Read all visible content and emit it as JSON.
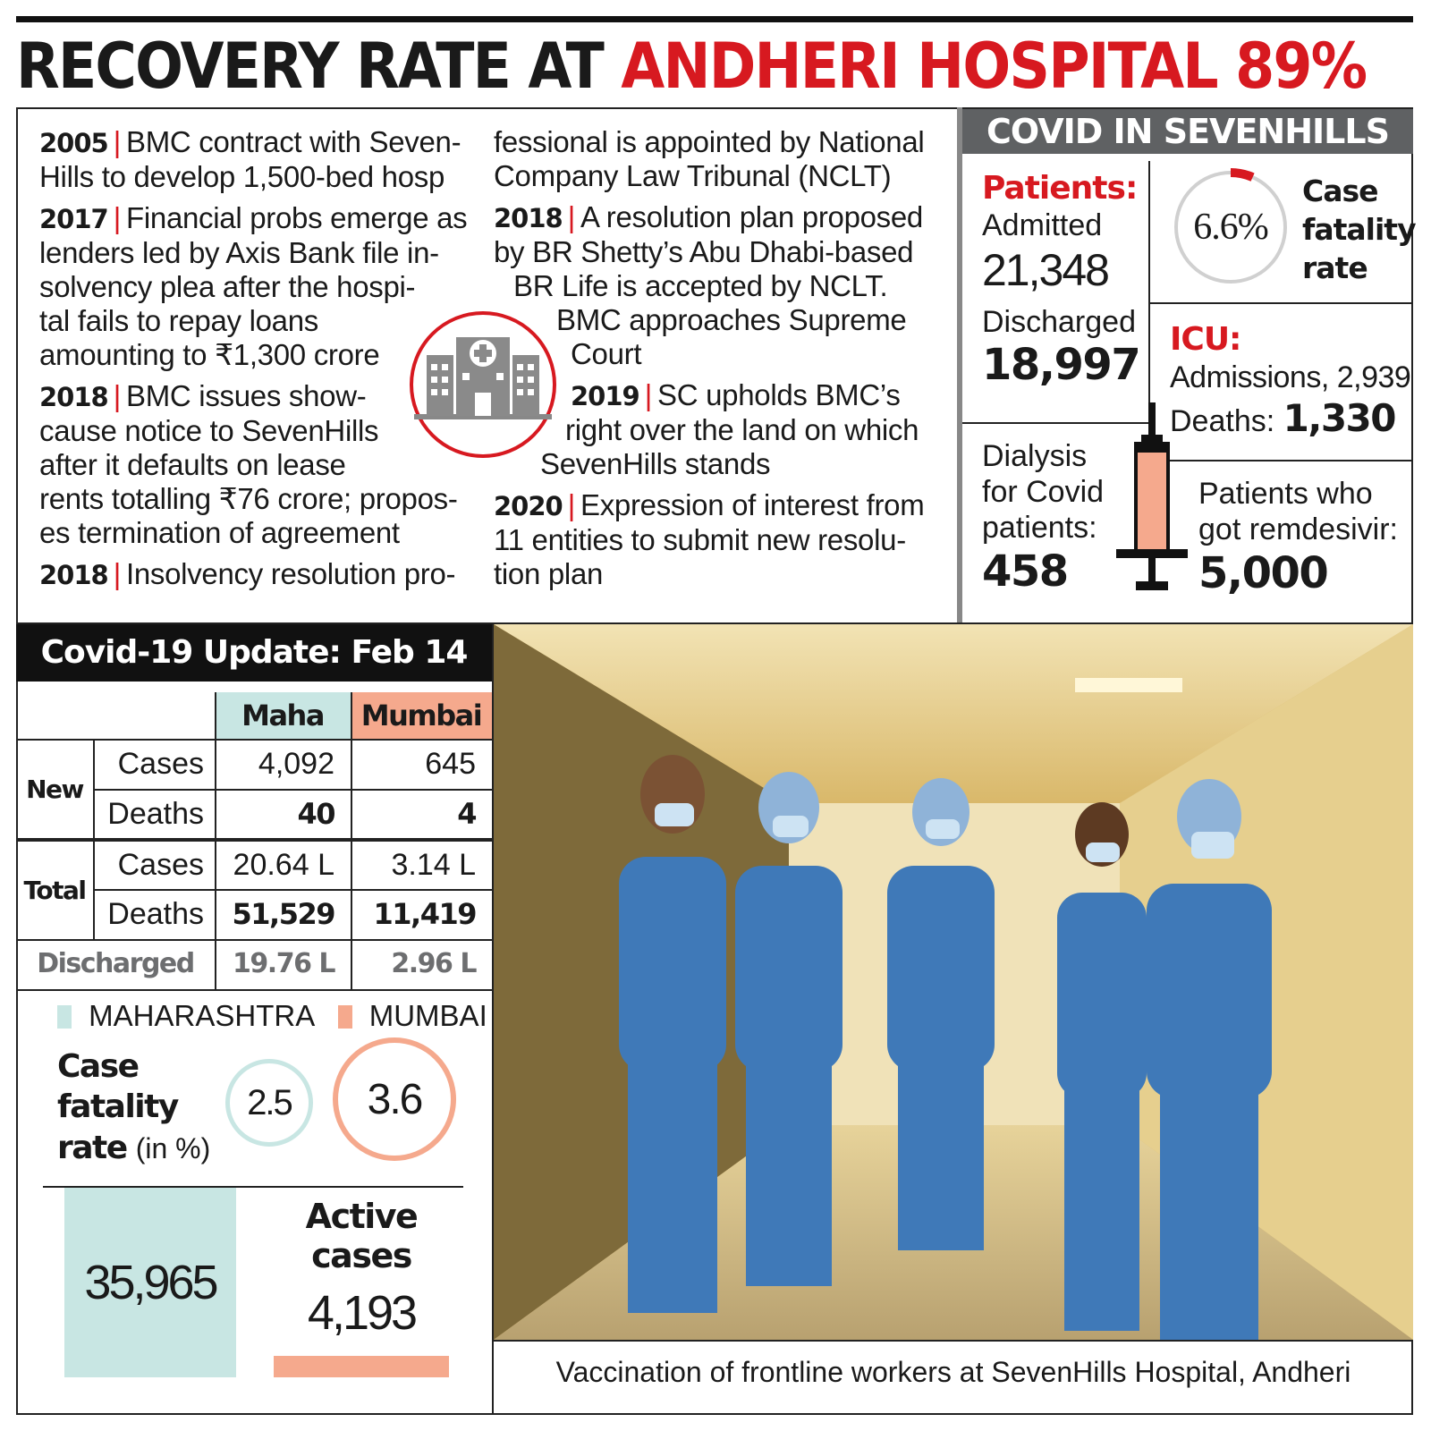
{
  "headline": {
    "part1": "RECOVERY RATE AT",
    "part2": "ANDHERI HOSPITAL 89%"
  },
  "timeline": [
    {
      "year": "2005",
      "lines": [
        "BMC contract with Seven-",
        "Hills to develop 1,500-bed hosp"
      ]
    },
    {
      "year": "2017",
      "lines": [
        "Financial probs emerge as",
        "lenders led by Axis Bank file in-",
        "solvency plea after the hospi-",
        "tal fails to repay loans",
        "amounting to ₹1,300 crore"
      ]
    },
    {
      "year": "2018",
      "lines": [
        "BMC issues show-",
        "cause notice to SevenHills",
        "after it defaults on lease",
        "rents totalling ₹76 crore; propos-",
        "es termination of agreement"
      ]
    },
    {
      "year": "2018",
      "lines": [
        "Insolvency resolution pro-",
        "fessional is appointed by National",
        "Company Law Tribunal (NCLT)"
      ]
    },
    {
      "year": "2018",
      "lines": [
        "A resolution plan proposed",
        "by BR Shetty’s Abu Dhabi-based",
        "BR Life is accepted by NCLT.",
        "BMC approaches Supreme",
        "Court"
      ]
    },
    {
      "year": "2019",
      "lines": [
        "SC upholds BMC’s",
        "right over the land on which",
        "SevenHills stands"
      ]
    },
    {
      "year": "2020",
      "lines": [
        "Expression of interest from",
        "11 entities to submit new resolu-",
        "tion plan"
      ]
    }
  ],
  "sevenhills": {
    "title": "COVID IN SEVENHILLS",
    "patients_label": "Patients:",
    "admitted_label": "Admitted",
    "admitted_value": "21,348",
    "discharged_label": "Discharged",
    "discharged_value": "18,997",
    "cfr_value": "6.6%",
    "cfr_fraction": 0.066,
    "cfr_label": [
      "Case",
      "fatality",
      "rate"
    ],
    "icu_label": "ICU:",
    "icu_admissions": "Admissions, 2,939",
    "icu_deaths_label": "Deaths:",
    "icu_deaths_value": "1,330",
    "dialysis_label": [
      "Dialysis",
      "for Covid",
      "patients:"
    ],
    "dialysis_value": "458",
    "remdesivir_label": [
      "Patients who",
      "got remdesivir:"
    ],
    "remdesivir_value": "5,000",
    "syringe_icon": "syringe-icon",
    "hospital_icon": "hospital-icon"
  },
  "update": {
    "title": "Covid-19 Update: Feb 14",
    "col_maha": "Maha",
    "col_mumbai": "Mumbai",
    "group_new": "New",
    "group_total": "Total",
    "row_cases": "Cases",
    "row_deaths": "Deaths",
    "new_cases": [
      "4,092",
      "645"
    ],
    "new_deaths": [
      "40",
      "4"
    ],
    "total_cases": [
      "20.64 L",
      "3.14 L"
    ],
    "total_deaths": [
      "51,529",
      "11,419"
    ],
    "discharged_label": "Discharged",
    "discharged": [
      "19.76 L",
      "2.96 L"
    ],
    "legend_maha": "MAHARASHTRA",
    "legend_mumbai": "MUMBAI",
    "cfr_label_bold": [
      "Case",
      "fatality",
      "rate"
    ],
    "cfr_label_unit": "(in %)",
    "cfr_maha": "2.5",
    "cfr_mumbai": "3.6",
    "active_label": [
      "Active",
      "cases"
    ],
    "active_maha": "35,965",
    "active_mumbai": "4,193"
  },
  "colors": {
    "red": "#d71920",
    "teal": "#c8e6e3",
    "salmon": "#f5a98d",
    "grey": "#5f6163"
  },
  "photo": {
    "caption": "Vaccination of frontline workers at SevenHills Hospital, Andheri"
  }
}
